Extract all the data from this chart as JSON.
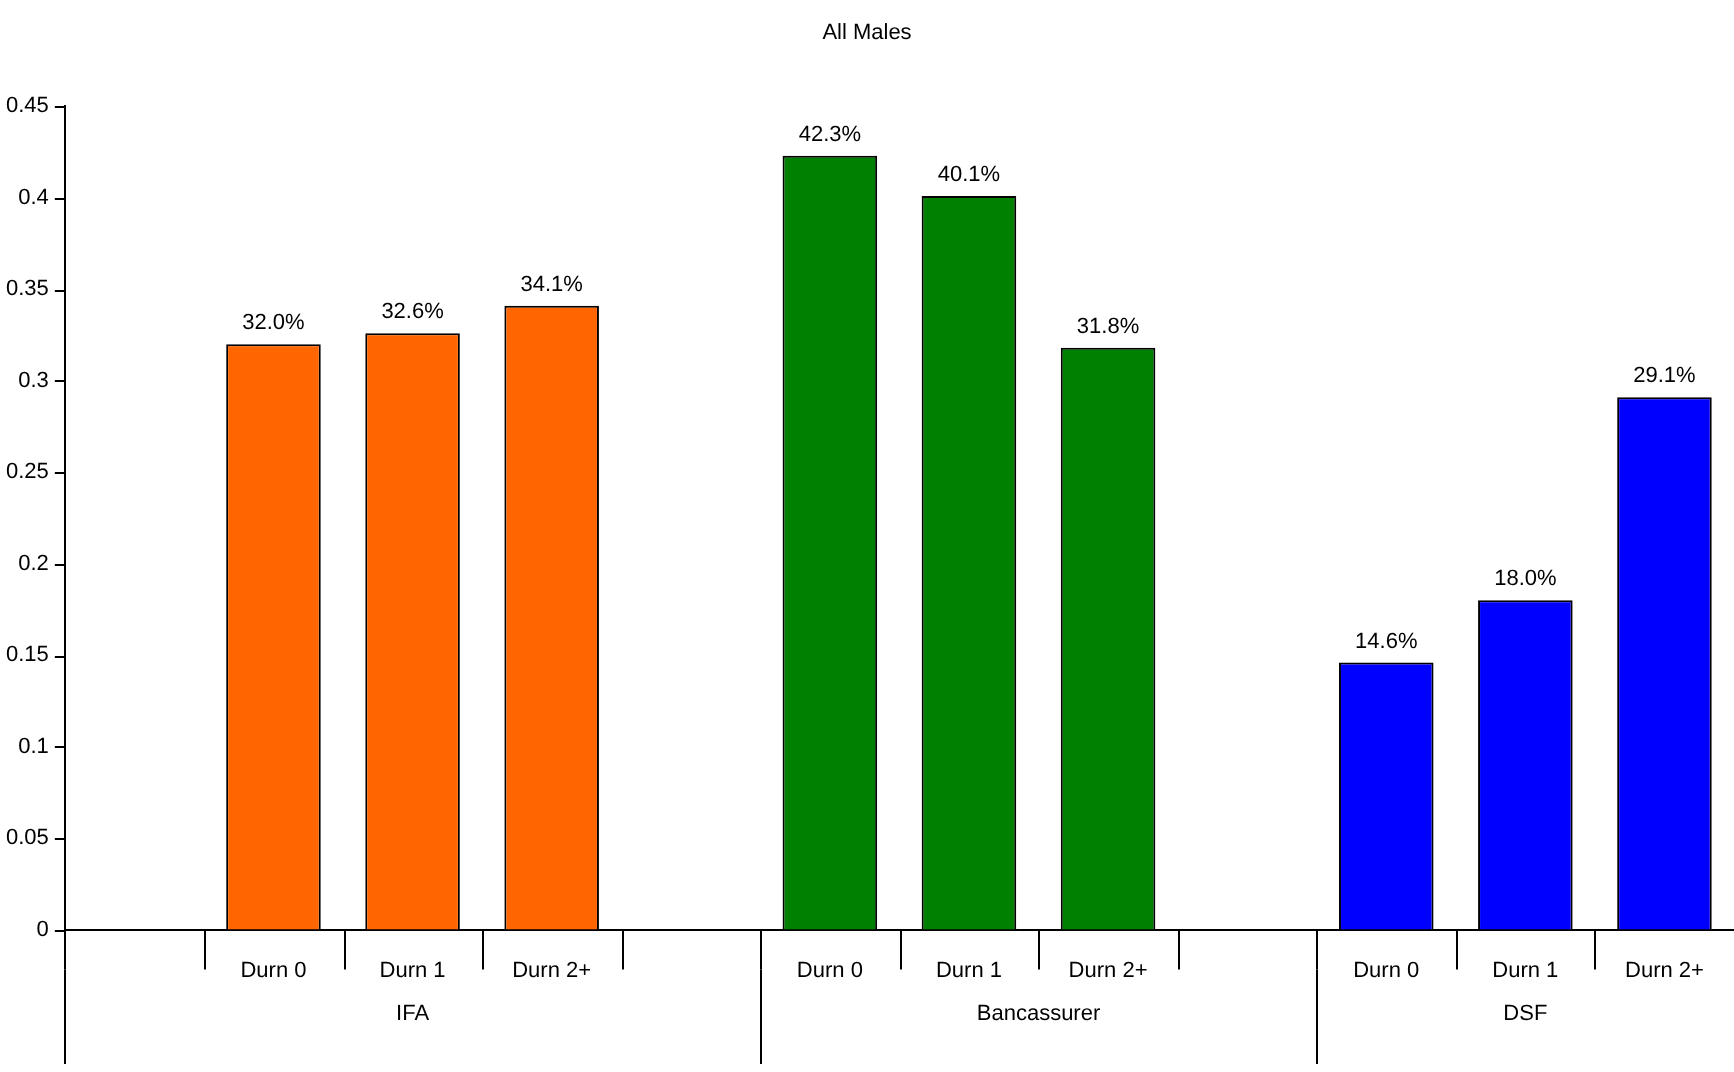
{
  "chart_data": {
    "type": "bar",
    "title": "All Males",
    "categories": [
      null,
      "Durn 0",
      "Durn 1",
      "Durn 2+",
      null,
      "Durn 0",
      "Durn 1",
      "Durn 2+",
      null,
      "Durn 0",
      "Durn 1",
      "Durn 2+"
    ],
    "values": [
      null,
      0.32,
      0.326,
      0.341,
      null,
      0.423,
      0.401,
      0.318,
      null,
      0.146,
      0.18,
      0.291
    ],
    "value_labels": [
      null,
      "32.0%",
      "32.6%",
      "34.1%",
      null,
      "42.3%",
      "40.1%",
      "31.8%",
      null,
      "14.6%",
      "18.0%",
      "29.1%"
    ],
    "colors": [
      null,
      "#ff6600",
      "#ff6600",
      "#ff6600",
      null,
      "#008000",
      "#008000",
      "#008000",
      null,
      "#0000ff",
      "#0000ff",
      "#0000ff"
    ],
    "ylim": [
      0,
      0.45
    ],
    "yticks": [
      0,
      0.05,
      0.1,
      0.15,
      0.2,
      0.25,
      0.3,
      0.35,
      0.4,
      0.45
    ],
    "annotations": [
      "IFA",
      "Bancassurer",
      "DSF"
    ]
  }
}
